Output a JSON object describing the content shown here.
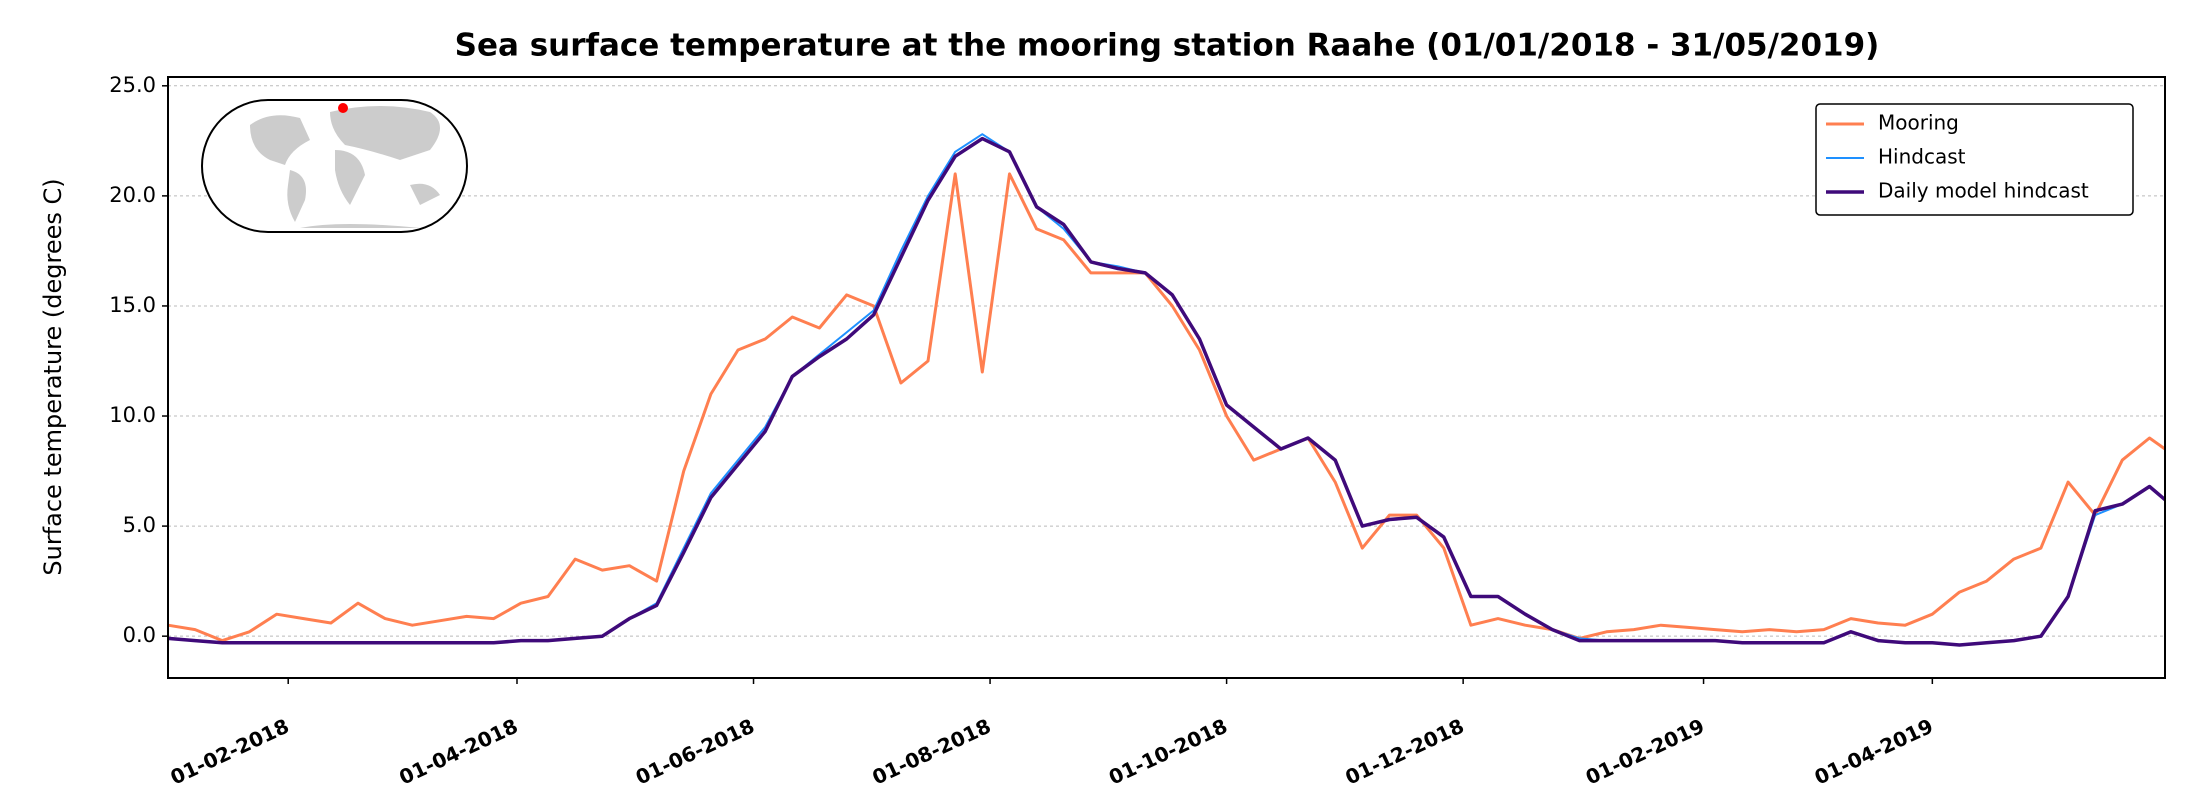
{
  "chart_data": {
    "type": "line",
    "title": "Sea surface temperature at the mooring station Raahe (01/01/2018 - 31/05/2019)",
    "y_label": "Surface temperature (degrees C)",
    "x": [
      "01-01-2018",
      "08-01-2018",
      "15-01-2018",
      "22-01-2018",
      "29-01-2018",
      "05-02-2018",
      "12-02-2018",
      "19-02-2018",
      "26-02-2018",
      "05-03-2018",
      "12-03-2018",
      "19-03-2018",
      "26-03-2018",
      "02-04-2018",
      "09-04-2018",
      "16-04-2018",
      "23-04-2018",
      "30-04-2018",
      "07-05-2018",
      "14-05-2018",
      "21-05-2018",
      "28-05-2018",
      "04-06-2018",
      "11-06-2018",
      "18-06-2018",
      "25-06-2018",
      "02-07-2018",
      "09-07-2018",
      "16-07-2018",
      "23-07-2018",
      "30-07-2018",
      "06-08-2018",
      "13-08-2018",
      "20-08-2018",
      "27-08-2018",
      "03-09-2018",
      "10-09-2018",
      "17-09-2018",
      "24-09-2018",
      "01-10-2018",
      "08-10-2018",
      "15-10-2018",
      "22-10-2018",
      "29-10-2018",
      "05-11-2018",
      "12-11-2018",
      "19-11-2018",
      "26-11-2018",
      "03-12-2018",
      "10-12-2018",
      "17-12-2018",
      "24-12-2018",
      "31-12-2018",
      "07-01-2019",
      "14-01-2019",
      "21-01-2019",
      "28-01-2019",
      "04-02-2019",
      "11-02-2019",
      "18-02-2019",
      "25-02-2019",
      "04-03-2019",
      "11-03-2019",
      "18-03-2019",
      "25-03-2019",
      "01-04-2019",
      "08-04-2019",
      "15-04-2019",
      "22-04-2019",
      "29-04-2019",
      "06-05-2019",
      "13-05-2019",
      "20-05-2019",
      "27-05-2019",
      "31-05-2019"
    ],
    "series": [
      {
        "name": "Mooring",
        "color": "#ff7f50",
        "width": 3,
        "values": [
          0.5,
          0.3,
          -0.2,
          0.2,
          1.0,
          0.8,
          0.6,
          1.5,
          0.8,
          0.5,
          0.7,
          0.9,
          0.8,
          1.5,
          1.8,
          3.5,
          3.0,
          3.2,
          2.5,
          7.5,
          11.0,
          13.0,
          13.5,
          14.5,
          14.0,
          15.5,
          15.0,
          11.5,
          12.5,
          21.0,
          12.0,
          21.0,
          18.5,
          18.0,
          16.5,
          16.5,
          16.5,
          15.0,
          13.0,
          10.0,
          8.0,
          8.5,
          9.0,
          7.0,
          4.0,
          5.5,
          5.5,
          4.0,
          0.5,
          0.8,
          0.5,
          0.3,
          -0.1,
          0.2,
          0.3,
          0.5,
          0.4,
          0.3,
          0.2,
          0.3,
          0.2,
          0.3,
          0.8,
          0.6,
          0.5,
          1.0,
          2.0,
          2.5,
          3.5,
          4.0,
          7.0,
          5.5,
          8.0,
          9.0,
          8.5
        ]
      },
      {
        "name": "Hindcast",
        "color": "#1e90ff",
        "width": 2,
        "values": [
          -0.1,
          -0.2,
          -0.3,
          -0.3,
          -0.3,
          -0.3,
          -0.3,
          -0.3,
          -0.3,
          -0.3,
          -0.3,
          -0.3,
          -0.3,
          -0.2,
          -0.2,
          -0.1,
          0.0,
          0.8,
          1.5,
          4.0,
          6.5,
          8.0,
          9.5,
          11.8,
          12.8,
          13.8,
          14.8,
          17.5,
          20.0,
          22.0,
          22.8,
          22.0,
          19.5,
          18.5,
          17.0,
          16.8,
          16.5,
          15.5,
          13.5,
          10.5,
          9.5,
          8.5,
          9.0,
          8.0,
          5.0,
          5.3,
          5.4,
          4.5,
          1.8,
          1.8,
          1.0,
          0.3,
          -0.1,
          -0.2,
          -0.2,
          -0.2,
          -0.2,
          -0.2,
          -0.3,
          -0.3,
          -0.3,
          -0.3,
          0.2,
          -0.2,
          -0.3,
          -0.3,
          -0.4,
          -0.3,
          -0.2,
          0.0,
          1.8,
          5.5,
          6.0,
          6.8,
          6.2
        ]
      },
      {
        "name": "Daily model hindcast",
        "color": "#3f0a7a",
        "width": 3.5,
        "values": [
          -0.1,
          -0.2,
          -0.3,
          -0.3,
          -0.3,
          -0.3,
          -0.3,
          -0.3,
          -0.3,
          -0.3,
          -0.3,
          -0.3,
          -0.3,
          -0.2,
          -0.2,
          -0.1,
          0.0,
          0.8,
          1.4,
          3.8,
          6.3,
          7.8,
          9.3,
          11.8,
          12.7,
          13.5,
          14.6,
          17.2,
          19.8,
          21.8,
          22.6,
          22.0,
          19.5,
          18.7,
          17.0,
          16.7,
          16.5,
          15.5,
          13.5,
          10.5,
          9.5,
          8.5,
          9.0,
          8.0,
          5.0,
          5.3,
          5.4,
          4.5,
          1.8,
          1.8,
          1.0,
          0.3,
          -0.2,
          -0.2,
          -0.2,
          -0.2,
          -0.2,
          -0.2,
          -0.3,
          -0.3,
          -0.3,
          -0.3,
          0.2,
          -0.2,
          -0.3,
          -0.3,
          -0.4,
          -0.3,
          -0.2,
          0.0,
          1.8,
          5.7,
          6.0,
          6.8,
          6.2
        ]
      }
    ],
    "xlim": [
      "01-01-2018",
      "31-05-2019"
    ],
    "xticks": [
      "01-02-2018",
      "01-04-2018",
      "01-06-2018",
      "01-08-2018",
      "01-10-2018",
      "01-12-2018",
      "01-02-2019",
      "01-04-2019"
    ],
    "ylim": [
      -1.9,
      25.4
    ],
    "yticks": [
      {
        "value": 0,
        "label": "0.0"
      },
      {
        "value": 5,
        "label": "5.0"
      },
      {
        "value": 10,
        "label": "10.0"
      },
      {
        "value": 15,
        "label": "15.0"
      },
      {
        "value": 20,
        "label": "20.0"
      },
      {
        "value": 25,
        "label": "25.0"
      }
    ],
    "grid": true,
    "legend": "upper right"
  }
}
